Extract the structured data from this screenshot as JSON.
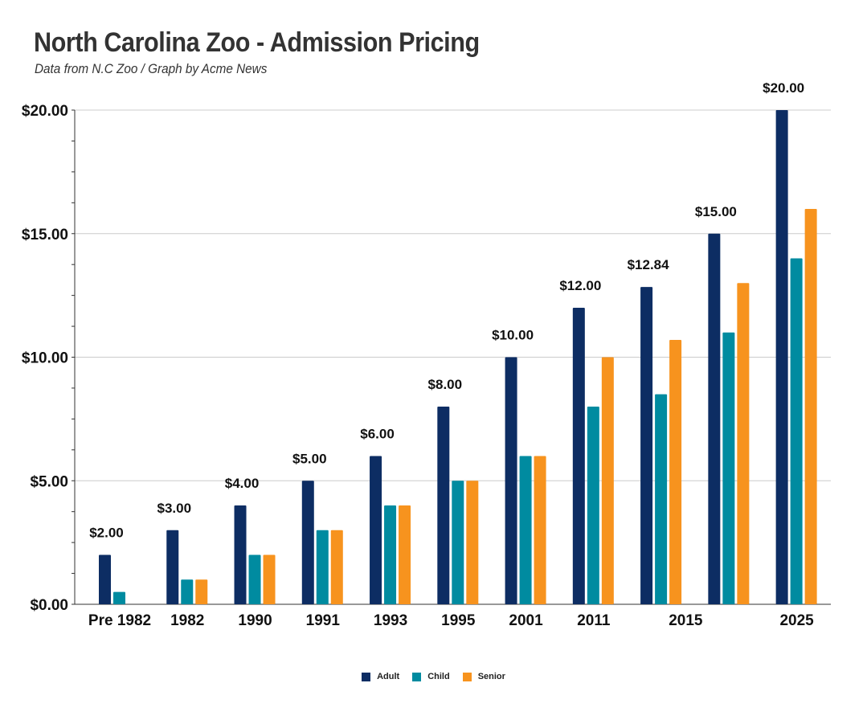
{
  "title": "North Carolina Zoo - Admission Pricing",
  "subtitle": "Data from N.C Zoo / Graph by Acme News",
  "colors": {
    "adult": "#0d2d63",
    "child": "#008ba0",
    "senior": "#f7931e",
    "grid": "#cccccc",
    "axis": "#333333"
  },
  "chart_data": {
    "type": "bar",
    "categories": [
      "Pre 1982",
      "1982",
      "1990",
      "1991",
      "1993",
      "1995",
      "2001",
      "2011",
      "",
      "2015",
      "2025"
    ],
    "series": [
      {
        "name": "Adult",
        "values": [
          2,
          3,
          4,
          5,
          6,
          8,
          10,
          12,
          12.84,
          15,
          20
        ]
      },
      {
        "name": "Child",
        "values": [
          0.5,
          1,
          2,
          3,
          4,
          5,
          6,
          8,
          8.5,
          11,
          14
        ]
      },
      {
        "name": "Senior",
        "values": [
          null,
          1,
          2,
          3,
          4,
          5,
          6,
          10,
          10.7,
          13,
          16
        ]
      }
    ],
    "data_labels": [
      "$2.00",
      "$3.00",
      "$4.00",
      "$5.00",
      "$6.00",
      "$8.00",
      "$10.00",
      "$12.00",
      "$12.84",
      "$15.00",
      "$20.00"
    ],
    "ylim": [
      0,
      20
    ],
    "yticks": [
      0,
      5,
      10,
      15,
      20
    ],
    "ytick_labels": [
      "$0.00",
      "$5.00",
      "$10.00",
      "$15.00",
      "$20.00"
    ],
    "grid": true,
    "legend_position": "bottom",
    "xlabel": "",
    "ylabel": ""
  }
}
